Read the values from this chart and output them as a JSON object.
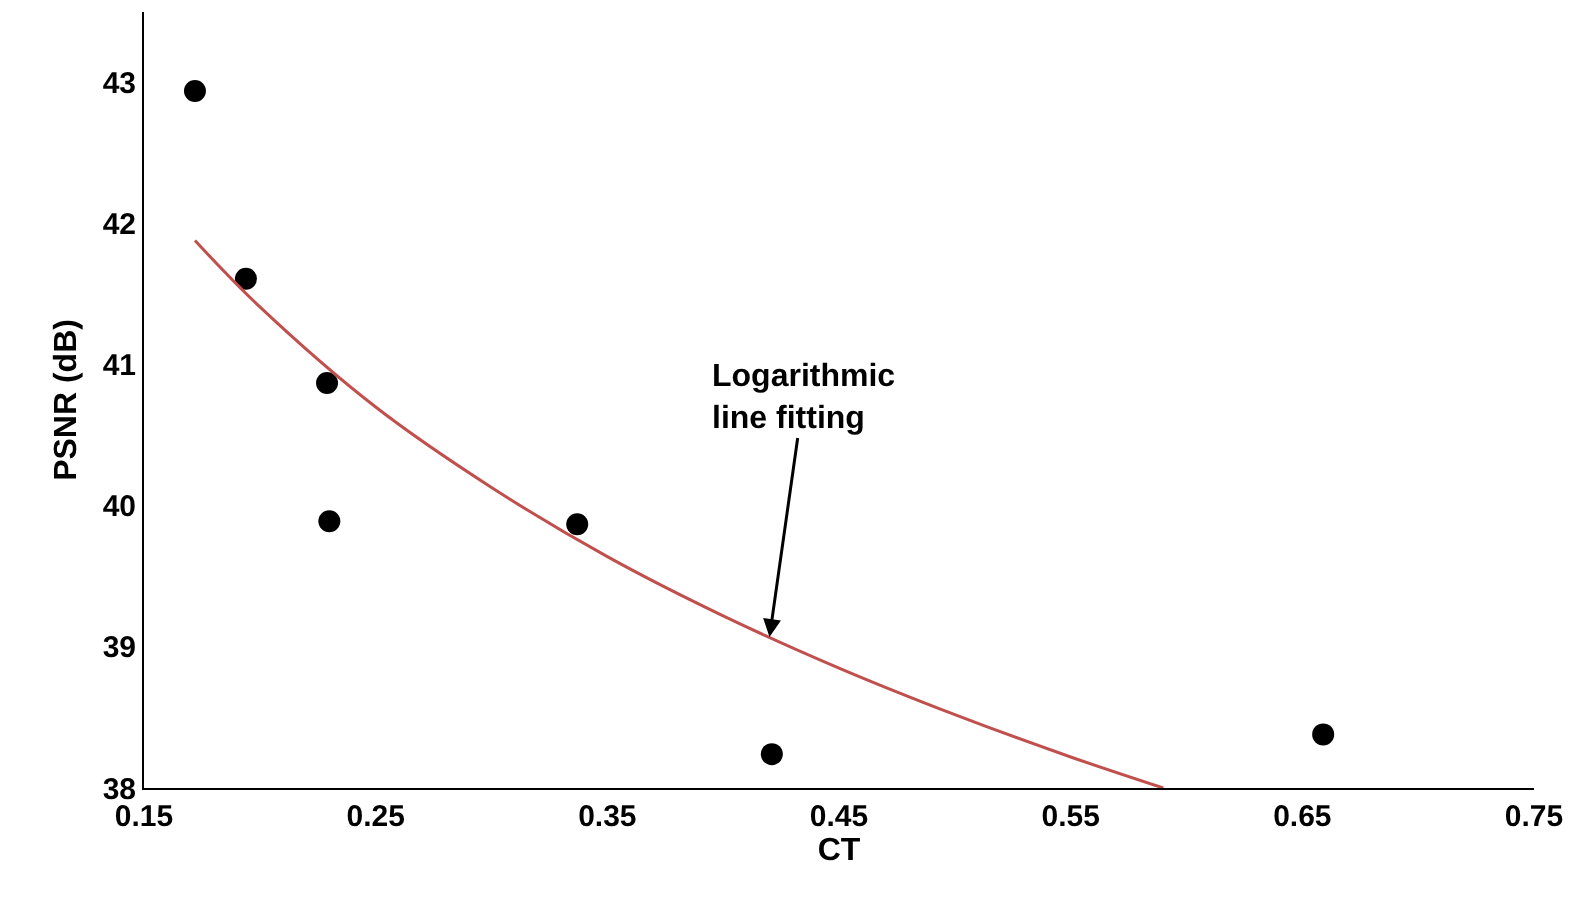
{
  "chart_data": {
    "type": "scatter",
    "xlabel": "CT",
    "ylabel": "PSNR (dB)",
    "series": [
      {
        "color": "#000000",
        "x": [
          0.172,
          0.194,
          0.229,
          0.23,
          0.337,
          0.421,
          0.659
        ],
        "values": [
          42.94,
          41.61,
          40.87,
          39.89,
          39.87,
          38.24,
          38.38
        ]
      },
      {
        "type": "line",
        "marker": "none",
        "color": "#c0504d",
        "x": [
          0.172,
          0.2,
          0.25,
          0.3,
          0.35,
          0.4,
          0.45,
          0.5,
          0.55,
          0.59
        ],
        "values": [
          41.88,
          41.41,
          40.7,
          40.13,
          39.64,
          39.22,
          38.85,
          38.52,
          38.22,
          38.0
        ]
      }
    ],
    "annotations": [
      {
        "text": "Logarithmic\nline fitting",
        "x": 0.42,
        "y": 39.07
      }
    ],
    "xlim": [
      0.15,
      0.75
    ],
    "xticks": [
      0.15,
      0.25,
      0.35,
      0.45,
      0.55,
      0.65,
      0.75
    ],
    "ylim": [
      38,
      43.5
    ],
    "yticks": [
      38,
      39,
      40,
      41,
      42,
      43
    ],
    "marker": "circle",
    "line_style": "solid",
    "grid": false
  }
}
